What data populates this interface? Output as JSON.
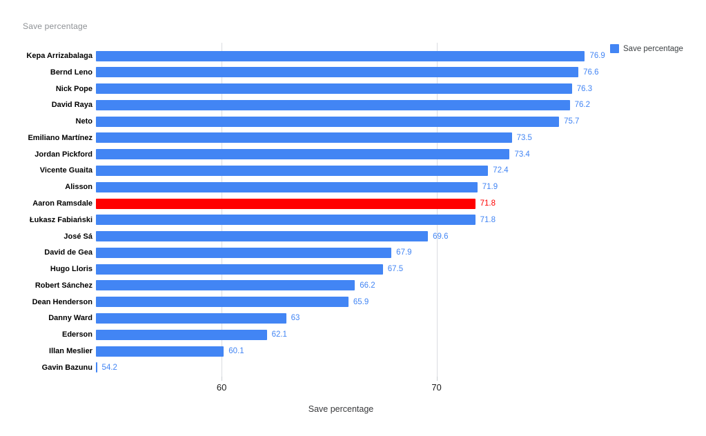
{
  "chart_data": {
    "type": "bar",
    "orientation": "horizontal",
    "title": "Save percentage",
    "xlabel": "Save percentage",
    "legend": {
      "label": "Save percentage",
      "position": "top-right"
    },
    "categories": [
      "Kepa Arrizabalaga",
      "Bernd Leno",
      "Nick Pope",
      "David Raya",
      "Neto",
      "Emiliano Martínez",
      "Jordan Pickford",
      "Vicente Guaita",
      "Alisson",
      "Aaron Ramsdale",
      "Łukasz Fabiański",
      "José Sá",
      "David de Gea",
      "Hugo Lloris",
      "Robert Sánchez",
      "Dean Henderson",
      "Danny Ward",
      "Ederson",
      "Illan Meslier",
      "Gavin Bazunu"
    ],
    "values": [
      76.9,
      76.6,
      76.3,
      76.2,
      75.7,
      73.5,
      73.4,
      72.4,
      71.9,
      71.8,
      71.8,
      69.6,
      67.9,
      67.5,
      66.2,
      65.9,
      63,
      62.1,
      60.1,
      54.2
    ],
    "bar_color": "#4285f4",
    "value_label_color": "#4285f4",
    "highlight_index": 9,
    "highlight_color": "#ff0000",
    "x_ticks": [
      60,
      70
    ],
    "x_range": [
      54.15,
      76.95
    ],
    "grid": true,
    "ylim_note": "bars sorted descending, highlighted bar is Aaron Ramsdale"
  }
}
